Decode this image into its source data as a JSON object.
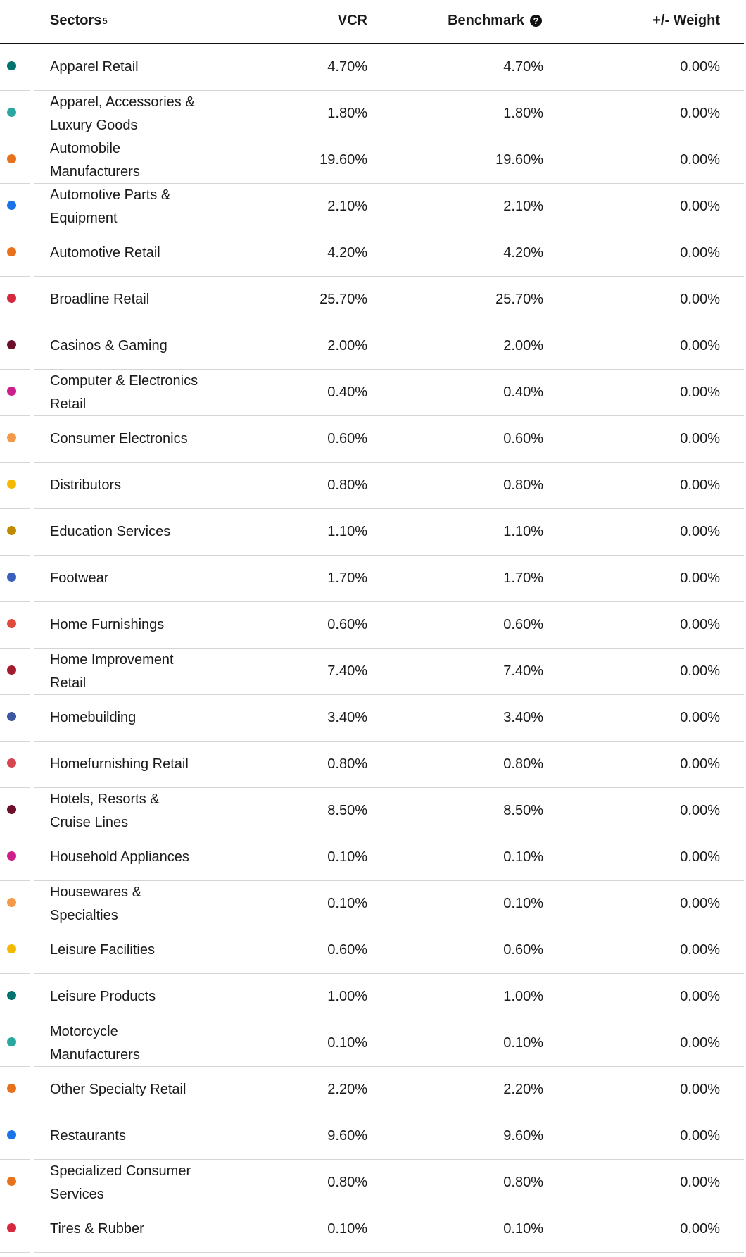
{
  "header": {
    "sectors": "Sectors",
    "sectors_note": "5",
    "vcr": "VCR",
    "benchmark": "Benchmark",
    "weight": "+/- Weight"
  },
  "rows": [
    {
      "color": "#00736f",
      "sector": "Apparel Retail",
      "vcr": "4.70%",
      "benchmark": "4.70%",
      "weight": "0.00%"
    },
    {
      "color": "#2aa8a0",
      "sector": "Apparel, Accessories & Luxury Goods",
      "vcr": "1.80%",
      "benchmark": "1.80%",
      "weight": "0.00%"
    },
    {
      "color": "#e8711c",
      "sector": "Automobile Manufacturers",
      "vcr": "19.60%",
      "benchmark": "19.60%",
      "weight": "0.00%"
    },
    {
      "color": "#1a73e8",
      "sector": "Automotive Parts & Equipment",
      "vcr": "2.10%",
      "benchmark": "2.10%",
      "weight": "0.00%"
    },
    {
      "color": "#e8711c",
      "sector": "Automotive Retail",
      "vcr": "4.20%",
      "benchmark": "4.20%",
      "weight": "0.00%"
    },
    {
      "color": "#d6293d",
      "sector": "Broadline Retail",
      "vcr": "25.70%",
      "benchmark": "25.70%",
      "weight": "0.00%"
    },
    {
      "color": "#6b0f2a",
      "sector": "Casinos & Gaming",
      "vcr": "2.00%",
      "benchmark": "2.00%",
      "weight": "0.00%"
    },
    {
      "color": "#cc1f8a",
      "sector": "Computer & Electronics Retail",
      "vcr": "0.40%",
      "benchmark": "0.40%",
      "weight": "0.00%"
    },
    {
      "color": "#f29a4a",
      "sector": "Consumer Electronics",
      "vcr": "0.60%",
      "benchmark": "0.60%",
      "weight": "0.00%"
    },
    {
      "color": "#f5b800",
      "sector": "Distributors",
      "vcr": "0.80%",
      "benchmark": "0.80%",
      "weight": "0.00%"
    },
    {
      "color": "#c08a00",
      "sector": "Education Services",
      "vcr": "1.10%",
      "benchmark": "1.10%",
      "weight": "0.00%"
    },
    {
      "color": "#3a5fbf",
      "sector": "Footwear",
      "vcr": "1.70%",
      "benchmark": "1.70%",
      "weight": "0.00%"
    },
    {
      "color": "#e04a3b",
      "sector": "Home Furnishings",
      "vcr": "0.60%",
      "benchmark": "0.60%",
      "weight": "0.00%"
    },
    {
      "color": "#a31c2e",
      "sector": "Home Improvement Retail",
      "vcr": "7.40%",
      "benchmark": "7.40%",
      "weight": "0.00%"
    },
    {
      "color": "#3d57a3",
      "sector": "Homebuilding",
      "vcr": "3.40%",
      "benchmark": "3.40%",
      "weight": "0.00%"
    },
    {
      "color": "#d64550",
      "sector": "Homefurnishing Retail",
      "vcr": "0.80%",
      "benchmark": "0.80%",
      "weight": "0.00%"
    },
    {
      "color": "#6b0f2a",
      "sector": "Hotels, Resorts & Cruise Lines",
      "vcr": "8.50%",
      "benchmark": "8.50%",
      "weight": "0.00%"
    },
    {
      "color": "#cc1f8a",
      "sector": "Household Appliances",
      "vcr": "0.10%",
      "benchmark": "0.10%",
      "weight": "0.00%"
    },
    {
      "color": "#f29a4a",
      "sector": "Housewares & Specialties",
      "vcr": "0.10%",
      "benchmark": "0.10%",
      "weight": "0.00%"
    },
    {
      "color": "#f5b800",
      "sector": "Leisure Facilities",
      "vcr": "0.60%",
      "benchmark": "0.60%",
      "weight": "0.00%"
    },
    {
      "color": "#00736f",
      "sector": "Leisure Products",
      "vcr": "1.00%",
      "benchmark": "1.00%",
      "weight": "0.00%"
    },
    {
      "color": "#2aa8a0",
      "sector": "Motorcycle Manufacturers",
      "vcr": "0.10%",
      "benchmark": "0.10%",
      "weight": "0.00%"
    },
    {
      "color": "#e8711c",
      "sector": "Other Specialty Retail",
      "vcr": "2.20%",
      "benchmark": "2.20%",
      "weight": "0.00%"
    },
    {
      "color": "#1a73e8",
      "sector": "Restaurants",
      "vcr": "9.60%",
      "benchmark": "9.60%",
      "weight": "0.00%"
    },
    {
      "color": "#e8711c",
      "sector": "Specialized Consumer Services",
      "vcr": "0.80%",
      "benchmark": "0.80%",
      "weight": "0.00%"
    },
    {
      "color": "#d6293d",
      "sector": "Tires & Rubber",
      "vcr": "0.10%",
      "benchmark": "0.10%",
      "weight": "0.00%"
    }
  ]
}
